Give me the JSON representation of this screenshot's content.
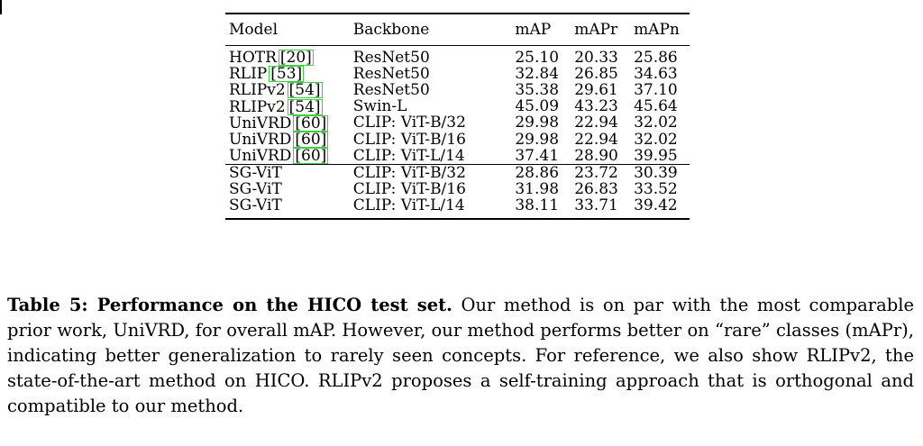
{
  "table": {
    "headers": [
      "Model",
      "Backbone",
      "mAP",
      "mAPr",
      "mAPn"
    ],
    "prior_rows": [
      {
        "model": "HOTR",
        "cite": "[20]",
        "backbone": "ResNet50",
        "map": "25.10",
        "mapr": "20.33",
        "mapn": "25.86",
        "bold": false
      },
      {
        "model": "RLIP",
        "cite": "[53]",
        "backbone": "ResNet50",
        "map": "32.84",
        "mapr": "26.85",
        "mapn": "34.63",
        "bold": false
      },
      {
        "model": "RLIPv2",
        "cite": "[54]",
        "backbone": "ResNet50",
        "map": "35.38",
        "mapr": "29.61",
        "mapn": "37.10",
        "bold": false
      },
      {
        "model": "RLIPv2",
        "cite": "[54]",
        "backbone": "Swin-L",
        "map": "45.09",
        "mapr": "43.23",
        "mapn": "45.64",
        "bold": true
      },
      {
        "model": "UniVRD",
        "cite": "[60]",
        "backbone": "CLIP: ViT-B/32",
        "map": "29.98",
        "mapr": "22.94",
        "mapn": "32.02",
        "bold": false
      },
      {
        "model": "UniVRD",
        "cite": "[60]",
        "backbone": "CLIP: ViT-B/16",
        "map": "29.98",
        "mapr": "22.94",
        "mapn": "32.02",
        "bold": false
      },
      {
        "model": "UniVRD",
        "cite": "[60]",
        "backbone": "CLIP: ViT-L/14",
        "map": "37.41",
        "mapr": "28.90",
        "mapn": "39.95",
        "bold": false
      }
    ],
    "our_rows": [
      {
        "model": "SG-ViT",
        "backbone": "CLIP: ViT-B/32",
        "map": "28.86",
        "mapr": "23.72",
        "mapn": "30.39"
      },
      {
        "model": "SG-ViT",
        "backbone": "CLIP: ViT-B/16",
        "map": "31.98",
        "mapr": "26.83",
        "mapn": "33.52"
      },
      {
        "model": "SG-ViT",
        "backbone": "CLIP: ViT-L/14",
        "map": "38.11",
        "mapr": "33.71",
        "mapn": "39.42"
      }
    ]
  },
  "caption": {
    "label": "Table 5: Performance on the HICO test set.",
    "text": "Our method is on par with the most comparable prior work, UniVRD, for overall mAP. However, our method performs better on “rare” classes (mAPr), indicating better generalization to rarely seen concepts. For reference, we also show RLIPv2, the state-of-the-art method on HICO. RLIPv2 proposes a self-training approach that is orthogonal and compatible to our method."
  }
}
